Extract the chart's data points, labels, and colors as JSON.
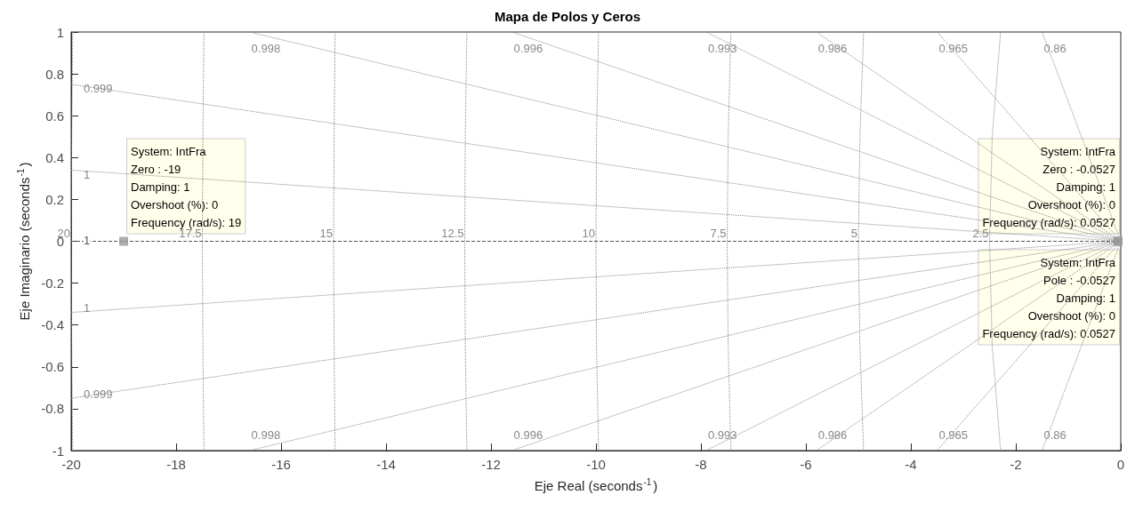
{
  "chart_data": {
    "type": "scatter",
    "title": "Mapa de Polos y Ceros",
    "xlabel": "Eje Real (seconds$^{-1}$)",
    "ylabel": "Eje Imaginario (seconds$^{-1}$)",
    "xlim": [
      -20,
      0
    ],
    "xticks": [
      -20,
      -18,
      -16,
      -14,
      -12,
      -10,
      -8,
      -6,
      -4,
      -2,
      0
    ],
    "ylim": [
      -1,
      1
    ],
    "yticks": [
      -1,
      -0.8,
      -0.6,
      -0.4,
      -0.2,
      0,
      0.2,
      0.4,
      0.6,
      0.8,
      1
    ],
    "marker": "none",
    "line_style": "dotted",
    "series": [
      {
        "color": "#999999",
        "marker": "square",
        "x": [
          -19,
          -0.0527,
          -0.0527
        ],
        "values": [
          0,
          0,
          0
        ]
      },
      {
        "type": "line",
        "name": "1",
        "color": "#555555",
        "line_style": "dashed",
        "x": [
          0,
          -20
        ],
        "values": [
          0,
          0
        ]
      },
      {
        "type": "line",
        "name": "0.999",
        "color": "#888888",
        "x": [
          0,
          -20
        ],
        "values": [
          0,
          0.75
        ]
      },
      {
        "type": "line",
        "name": "0.999",
        "color": "#888888",
        "x": [
          0,
          -20
        ],
        "values": [
          0,
          -0.75
        ]
      },
      {
        "type": "line",
        "name": "1",
        "color": "#888888",
        "x": [
          0,
          -20
        ],
        "values": [
          0,
          0.34
        ]
      },
      {
        "type": "line",
        "name": "1",
        "color": "#888888",
        "x": [
          0,
          -20
        ],
        "values": [
          0,
          -0.34
        ]
      },
      {
        "type": "line",
        "name": "0.998",
        "color": "#888888",
        "x": [
          0,
          -16.6
        ],
        "values": [
          0,
          1
        ]
      },
      {
        "type": "line",
        "name": "0.998",
        "color": "#888888",
        "x": [
          0,
          -16.6
        ],
        "values": [
          0,
          -1
        ]
      },
      {
        "type": "line",
        "name": "0.996",
        "color": "#888888",
        "x": [
          0,
          -11.6
        ],
        "values": [
          0,
          1
        ]
      },
      {
        "type": "line",
        "name": "0.996",
        "color": "#888888",
        "x": [
          0,
          -11.6
        ],
        "values": [
          0,
          -1
        ]
      },
      {
        "type": "line",
        "name": "0.993",
        "color": "#888888",
        "x": [
          0,
          -7.9
        ],
        "values": [
          0,
          1
        ]
      },
      {
        "type": "line",
        "name": "0.993",
        "color": "#888888",
        "x": [
          0,
          -7.9
        ],
        "values": [
          0,
          -1
        ]
      },
      {
        "type": "line",
        "name": "0.986",
        "color": "#888888",
        "x": [
          0,
          -5.8
        ],
        "values": [
          0,
          1
        ]
      },
      {
        "type": "line",
        "name": "0.986",
        "color": "#888888",
        "x": [
          0,
          -5.8
        ],
        "values": [
          0,
          -1
        ]
      },
      {
        "type": "line",
        "name": "0.965",
        "color": "#888888",
        "x": [
          0,
          -3.5
        ],
        "values": [
          0,
          1
        ]
      },
      {
        "type": "line",
        "name": "0.965",
        "color": "#888888",
        "x": [
          0,
          -3.5
        ],
        "values": [
          0,
          -1
        ]
      },
      {
        "type": "line",
        "name": "0.86",
        "color": "#888888",
        "x": [
          0,
          -1.5
        ],
        "values": [
          0,
          1
        ]
      },
      {
        "type": "line",
        "name": "0.86",
        "color": "#888888",
        "x": [
          0,
          -1.5
        ],
        "values": [
          0,
          -1
        ]
      },
      {
        "type": "line",
        "name": "2.5",
        "color": "#888888",
        "x": [
          -2.29,
          -2.45,
          -2.5,
          -2.45,
          -2.29
        ],
        "values": [
          -1,
          -0.5,
          0,
          0.5,
          1
        ]
      },
      {
        "type": "line",
        "name": "5",
        "color": "#888888",
        "x": [
          -4.9,
          -4.97,
          -5,
          -4.97,
          -4.9
        ],
        "values": [
          -1,
          -0.5,
          0,
          0.5,
          1
        ]
      },
      {
        "type": "line",
        "name": "7.5",
        "color": "#888888",
        "x": [
          -7.43,
          -7.48,
          -7.5,
          -7.48,
          -7.43
        ],
        "values": [
          -1,
          -0.5,
          0,
          0.5,
          1
        ]
      },
      {
        "type": "line",
        "name": "10",
        "color": "#888888",
        "x": [
          -9.95,
          -9.99,
          -10,
          -9.99,
          -9.95
        ],
        "values": [
          -1,
          -0.5,
          0,
          0.5,
          1
        ]
      },
      {
        "type": "line",
        "name": "12.5",
        "color": "#888888",
        "x": [
          -12.46,
          -12.49,
          -12.5,
          -12.49,
          -12.46
        ],
        "values": [
          -1,
          -0.5,
          0,
          0.5,
          1
        ]
      },
      {
        "type": "line",
        "name": "15",
        "color": "#888888",
        "x": [
          -14.97,
          -14.99,
          -15,
          -14.99,
          -14.97
        ],
        "values": [
          -1,
          -0.5,
          0,
          0.5,
          1
        ]
      },
      {
        "type": "line",
        "name": "17.5",
        "color": "#888888",
        "x": [
          -17.47,
          -17.49,
          -17.5,
          -17.49,
          -17.47
        ],
        "values": [
          -1,
          -0.5,
          0,
          0.5,
          1
        ]
      },
      {
        "type": "line",
        "name": "20",
        "color": "#888888",
        "x": [
          -19.97,
          -19.99,
          -20,
          -19.99,
          -19.97
        ],
        "values": [
          -1,
          -0.5,
          0,
          0.5,
          1
        ]
      }
    ],
    "annotations": [
      "System: IntFra\nZero : -19\nDamping: 1\nOvershoot (%): 0\nFrequency (rad/s): 19",
      "System: IntFra\nZero : -0.0527\nDamping: 1\nOvershoot (%): 0\nFrequency (rad/s): 0.0527",
      "System: IntFra\nPole : -0.0527\nDamping: 1\nOvershoot (%): 0\nFrequency (rad/s): 0.0527"
    ]
  }
}
